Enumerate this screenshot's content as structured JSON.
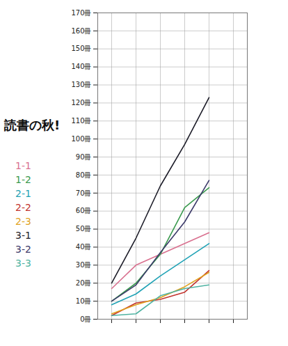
{
  "chart_data": {
    "type": "line",
    "title": "読書の秋!",
    "categories": [
      null,
      null,
      null,
      null,
      null,
      null
    ],
    "series": [
      {
        "name": "1-1",
        "color": "#d9708f",
        "values": [
          17,
          30,
          36,
          42,
          48,
          null
        ]
      },
      {
        "name": "1-2",
        "color": "#3a9a4e",
        "values": [
          10,
          20,
          36,
          62,
          73,
          null
        ]
      },
      {
        "name": "2-1",
        "color": "#1fa2b5",
        "values": [
          8,
          14,
          24,
          33,
          42,
          null
        ]
      },
      {
        "name": "2-2",
        "color": "#c2332e",
        "values": [
          2,
          9,
          11,
          15,
          27,
          null
        ]
      },
      {
        "name": "2-3",
        "color": "#e0a21e",
        "values": [
          3,
          8,
          12,
          18,
          26,
          null
        ]
      },
      {
        "name": "3-1",
        "color": "#1c1c28",
        "values": [
          20,
          45,
          74,
          97,
          123,
          null
        ]
      },
      {
        "name": "3-2",
        "color": "#3c3a6a",
        "values": [
          10,
          19,
          37,
          54,
          77,
          null
        ]
      },
      {
        "name": "3-3",
        "color": "#4fb3a2",
        "values": [
          2,
          3,
          13,
          17,
          19,
          null
        ]
      }
    ],
    "ylim": [
      0,
      170
    ],
    "yticks": [
      {
        "value": 0,
        "label": "0冊"
      },
      {
        "value": 10,
        "label": "10冊"
      },
      {
        "value": 20,
        "label": "20冊"
      },
      {
        "value": 30,
        "label": "30冊"
      },
      {
        "value": 40,
        "label": "40冊"
      },
      {
        "value": 50,
        "label": "50冊"
      },
      {
        "value": 60,
        "label": "60冊"
      },
      {
        "value": 70,
        "label": "70冊"
      },
      {
        "value": 80,
        "label": "80冊"
      },
      {
        "value": 90,
        "label": "90冊"
      },
      {
        "value": 100,
        "label": "100冊"
      },
      {
        "value": 110,
        "label": "110冊"
      },
      {
        "value": 120,
        "label": "120冊"
      },
      {
        "value": 130,
        "label": "130冊"
      },
      {
        "value": 140,
        "label": "140冊"
      },
      {
        "value": 150,
        "label": "150冊"
      },
      {
        "value": 160,
        "label": "160冊"
      },
      {
        "value": 170,
        "label": "170冊"
      }
    ],
    "grid": true,
    "legend": "left"
  }
}
